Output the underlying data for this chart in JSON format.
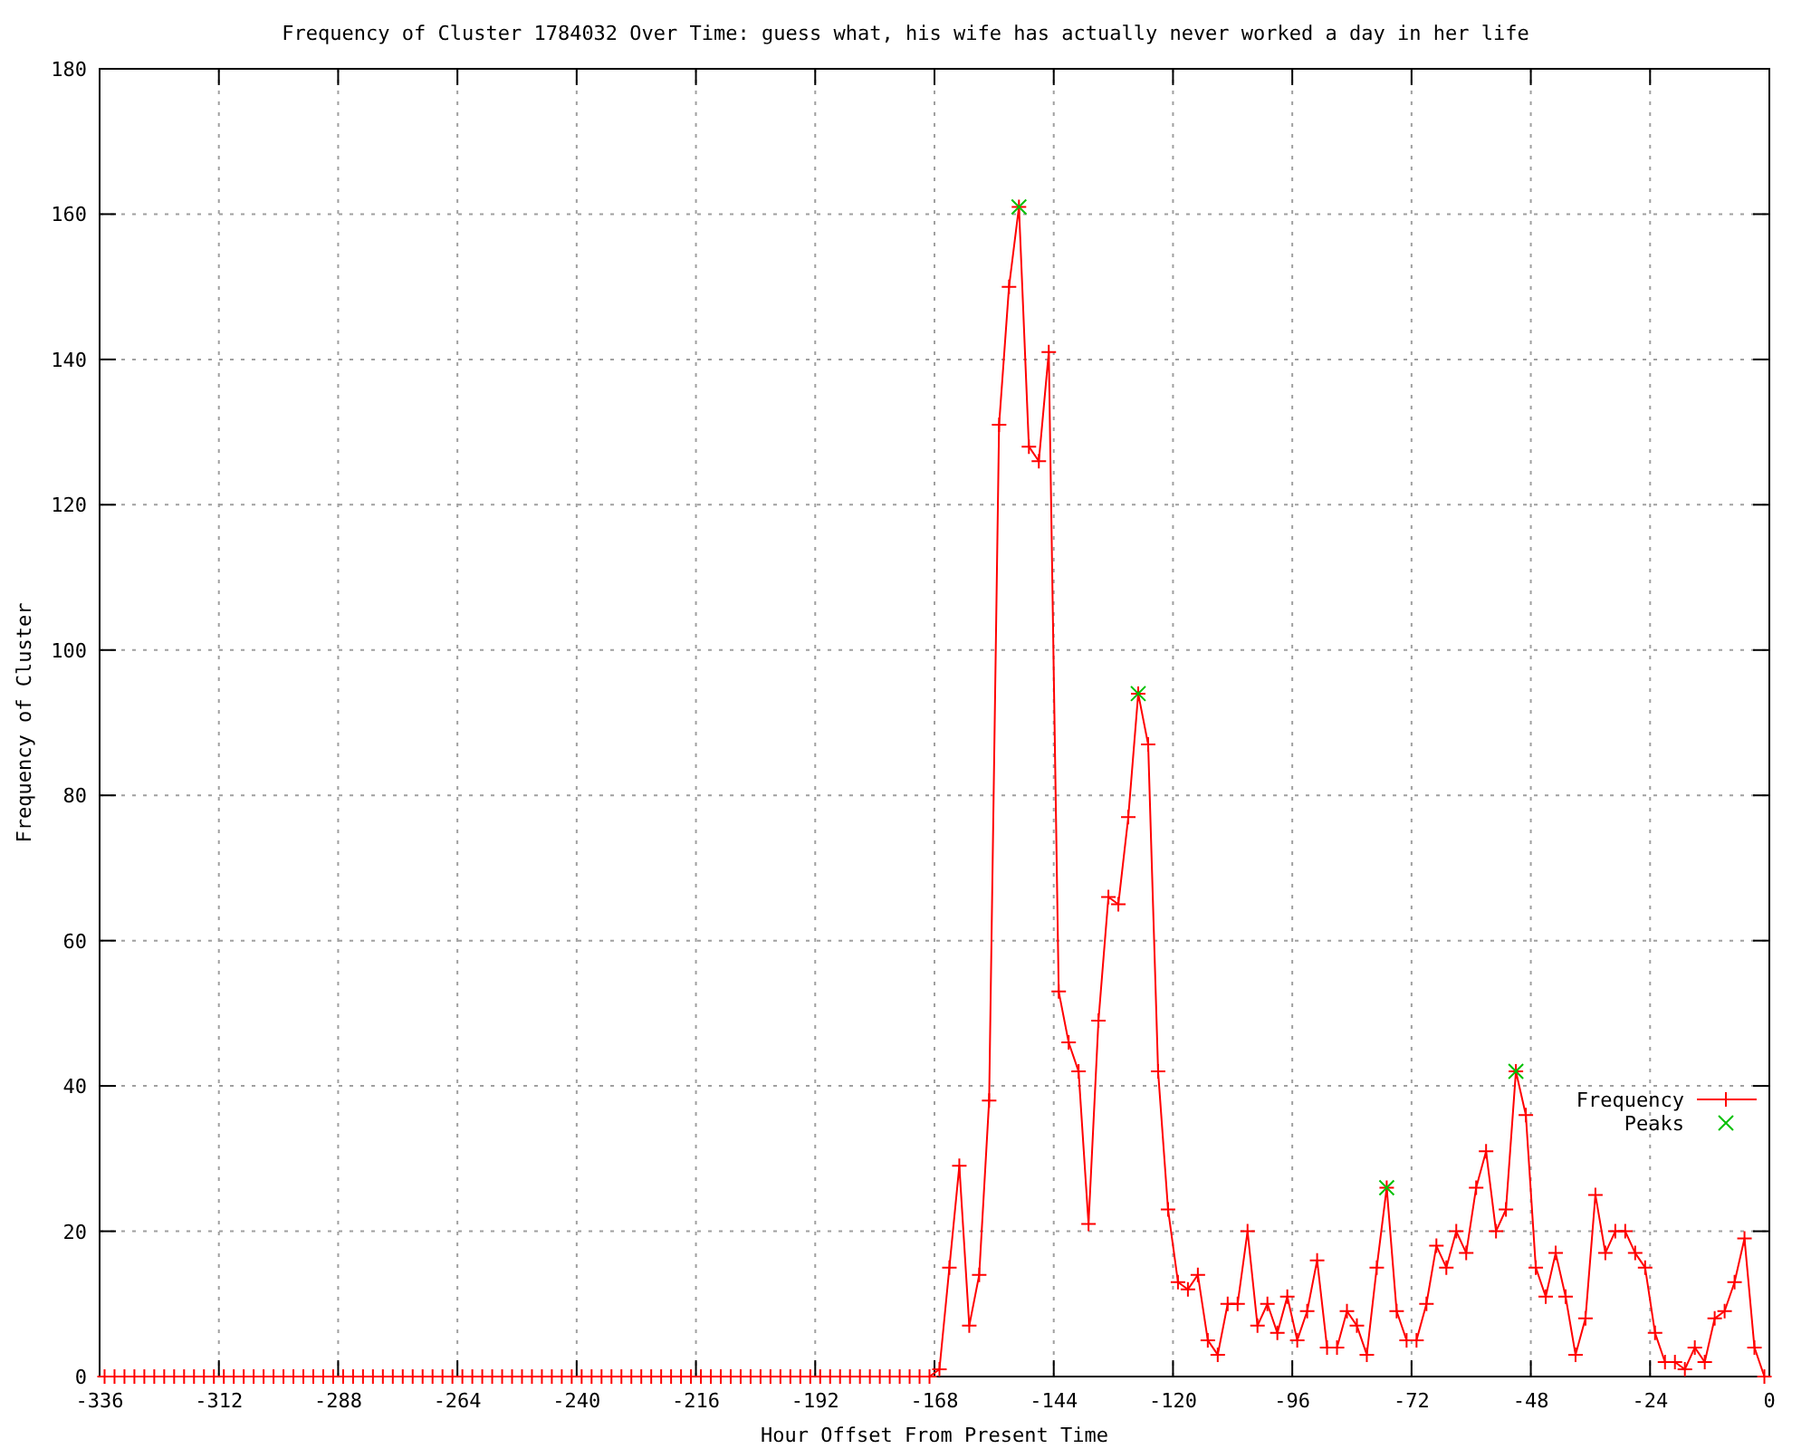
{
  "chart_data": {
    "type": "line",
    "title": "Frequency of Cluster 1784032 Over Time: guess what, his wife has actually never worked a day in her life",
    "xlabel": "Hour Offset From Present Time",
    "ylabel": "Frequency of Cluster",
    "xlim": [
      -336,
      0
    ],
    "ylim": [
      0,
      180
    ],
    "xticks": [
      -336,
      -312,
      -288,
      -264,
      -240,
      -216,
      -192,
      -168,
      -144,
      -120,
      -96,
      -72,
      -48,
      -24,
      0
    ],
    "yticks": [
      0,
      20,
      40,
      60,
      80,
      100,
      120,
      140,
      160,
      180
    ],
    "grid": true,
    "legend": "bottom right",
    "series": [
      {
        "name": "Frequency",
        "color": "#ff0000",
        "marker": "cross",
        "x": [
          -335,
          -333,
          -331,
          -329,
          -327,
          -325,
          -323,
          -321,
          -319,
          -317,
          -315,
          -313,
          -311,
          -309,
          -307,
          -305,
          -303,
          -301,
          -299,
          -297,
          -295,
          -293,
          -291,
          -289,
          -287,
          -285,
          -283,
          -281,
          -279,
          -277,
          -275,
          -273,
          -271,
          -269,
          -267,
          -265,
          -263,
          -261,
          -259,
          -257,
          -255,
          -253,
          -251,
          -249,
          -247,
          -245,
          -243,
          -241,
          -239,
          -237,
          -235,
          -233,
          -231,
          -229,
          -227,
          -225,
          -223,
          -221,
          -219,
          -217,
          -215,
          -213,
          -211,
          -209,
          -207,
          -205,
          -203,
          -201,
          -199,
          -197,
          -195,
          -193,
          -191,
          -189,
          -187,
          -185,
          -183,
          -181,
          -179,
          -177,
          -175,
          -173,
          -171,
          -169,
          -167,
          -165,
          -163,
          -161,
          -159,
          -157,
          -155,
          -153,
          -151,
          -149,
          -147,
          -145,
          -143,
          -141,
          -139,
          -137,
          -135,
          -133,
          -131,
          -129,
          -127,
          -125,
          -123,
          -121,
          -119,
          -117,
          -115,
          -113,
          -111,
          -109,
          -107,
          -105,
          -103,
          -101,
          -99,
          -97,
          -95,
          -93,
          -91,
          -89,
          -87,
          -85,
          -83,
          -81,
          -79,
          -77,
          -75,
          -73,
          -71,
          -69,
          -67,
          -65,
          -63,
          -61,
          -59,
          -57,
          -55,
          -53,
          -51,
          -49,
          -47,
          -45,
          -43,
          -41,
          -39,
          -37,
          -35,
          -33,
          -31,
          -29,
          -27,
          -25,
          -23,
          -21,
          -19,
          -17,
          -15,
          -13,
          -11,
          -9,
          -7,
          -5,
          -3,
          -1
        ],
        "values": [
          0,
          0,
          0,
          0,
          0,
          0,
          0,
          0,
          0,
          0,
          0,
          0,
          0,
          0,
          0,
          0,
          0,
          0,
          0,
          0,
          0,
          0,
          0,
          0,
          0,
          0,
          0,
          0,
          0,
          0,
          0,
          0,
          0,
          0,
          0,
          0,
          0,
          0,
          0,
          0,
          0,
          0,
          0,
          0,
          0,
          0,
          0,
          0,
          0,
          0,
          0,
          0,
          0,
          0,
          0,
          0,
          0,
          0,
          0,
          0,
          0,
          0,
          0,
          0,
          0,
          0,
          0,
          0,
          0,
          0,
          0,
          0,
          0,
          0,
          0,
          0,
          0,
          0,
          0,
          0,
          0,
          0,
          0,
          0,
          1,
          15,
          29,
          7,
          14,
          38,
          131,
          150,
          161,
          128,
          126,
          141,
          53,
          46,
          42,
          21,
          49,
          66,
          65,
          77,
          94,
          87,
          42,
          23,
          13,
          12,
          14,
          5,
          3,
          10,
          10,
          20,
          7,
          10,
          6,
          11,
          5,
          9,
          16,
          4,
          4,
          9,
          7,
          3,
          15,
          26,
          9,
          5,
          5,
          10,
          18,
          15,
          20,
          17,
          26,
          31,
          20,
          23,
          42,
          36,
          15,
          11,
          17,
          11,
          3,
          8,
          25,
          17,
          20,
          20,
          17,
          15,
          6,
          2,
          2,
          1,
          4,
          2,
          8,
          9,
          13,
          19,
          4,
          0
        ]
      },
      {
        "name": "Peaks",
        "type": "scatter",
        "color": "#00c000",
        "marker": "cross",
        "x": [
          -151,
          -127,
          -77,
          -51
        ],
        "values": [
          161,
          94,
          26,
          42
        ]
      }
    ]
  }
}
